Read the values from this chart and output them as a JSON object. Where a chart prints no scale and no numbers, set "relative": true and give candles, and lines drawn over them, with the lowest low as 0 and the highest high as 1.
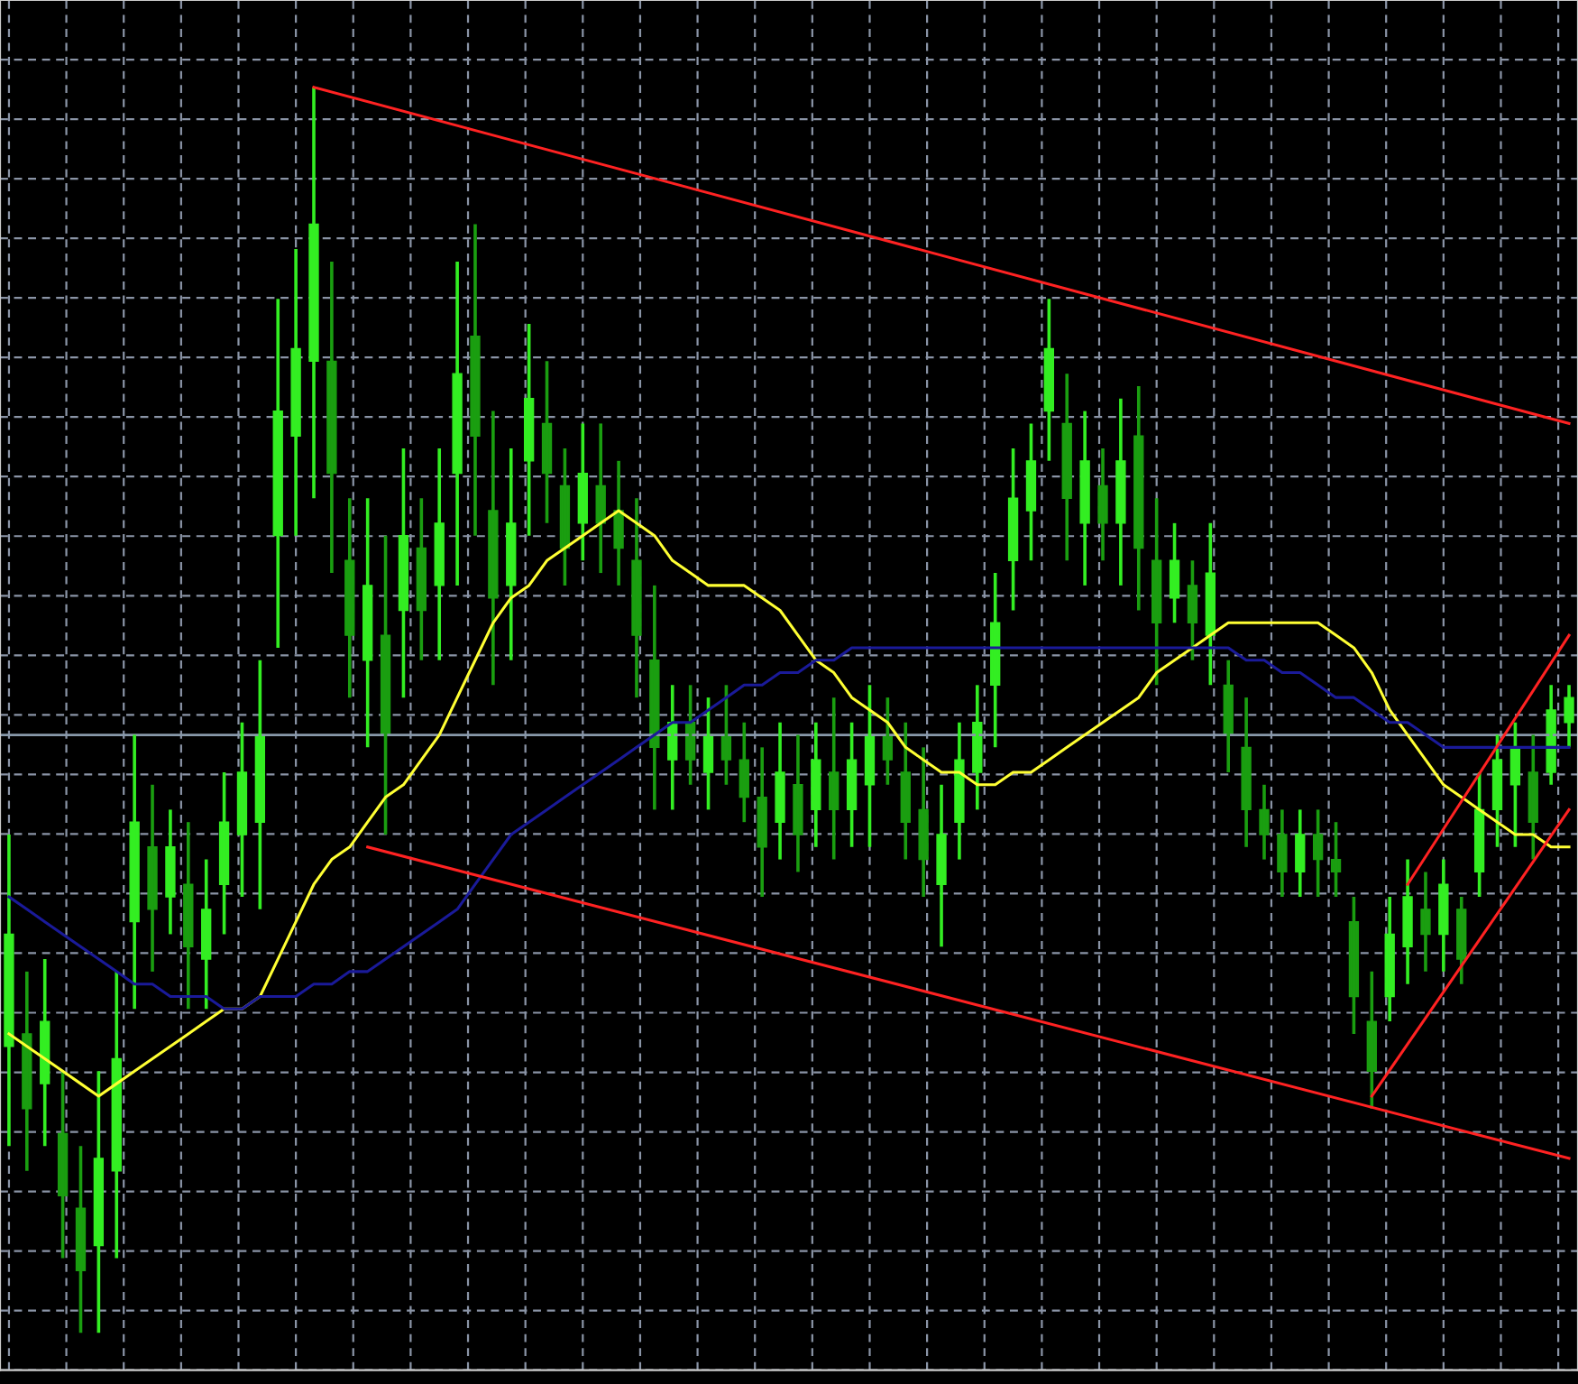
{
  "chart_data": {
    "type": "candlestick",
    "relative": true,
    "grid": true,
    "categories": [
      null,
      null,
      null,
      null,
      null,
      null,
      null,
      null,
      null,
      null,
      null,
      null,
      null,
      null,
      null,
      null,
      null,
      null,
      null,
      null,
      null,
      null,
      null,
      null,
      null,
      null,
      null,
      null,
      null,
      null,
      null,
      null,
      null,
      null,
      null,
      null,
      null,
      null,
      null,
      null,
      null,
      null,
      null,
      null,
      null,
      null,
      null,
      null,
      null,
      null,
      null,
      null,
      null,
      null,
      null,
      null,
      null,
      null,
      null,
      null,
      null,
      null,
      null,
      null,
      null,
      null,
      null,
      null,
      null,
      null,
      null,
      null,
      null,
      null,
      null,
      null,
      null,
      null,
      null,
      null,
      null,
      null,
      null,
      null,
      null,
      null,
      null,
      null
    ],
    "ohlc": [
      [
        0.23,
        0.4,
        0.15,
        0.32
      ],
      [
        0.24,
        0.29,
        0.13,
        0.18
      ],
      [
        0.2,
        0.3,
        0.15,
        0.25
      ],
      [
        0.16,
        0.21,
        0.06,
        0.11
      ],
      [
        0.1,
        0.15,
        0.0,
        0.05
      ],
      [
        0.07,
        0.21,
        0.0,
        0.14
      ],
      [
        0.13,
        0.29,
        0.06,
        0.22
      ],
      [
        0.33,
        0.48,
        0.26,
        0.41
      ],
      [
        0.39,
        0.44,
        0.29,
        0.34
      ],
      [
        0.35,
        0.42,
        0.32,
        0.39
      ],
      [
        0.36,
        0.41,
        0.26,
        0.31
      ],
      [
        0.3,
        0.38,
        0.26,
        0.34
      ],
      [
        0.36,
        0.45,
        0.32,
        0.41
      ],
      [
        0.4,
        0.49,
        0.35,
        0.45
      ],
      [
        0.41,
        0.54,
        0.34,
        0.48
      ],
      [
        0.64,
        0.83,
        0.55,
        0.74
      ],
      [
        0.72,
        0.87,
        0.64,
        0.79
      ],
      [
        0.78,
        1.0,
        0.67,
        0.89
      ],
      [
        0.78,
        0.86,
        0.61,
        0.69
      ],
      [
        0.62,
        0.67,
        0.51,
        0.56
      ],
      [
        0.54,
        0.67,
        0.47,
        0.6
      ],
      [
        0.56,
        0.64,
        0.4,
        0.48
      ],
      [
        0.58,
        0.71,
        0.51,
        0.64
      ],
      [
        0.63,
        0.67,
        0.54,
        0.58
      ],
      [
        0.6,
        0.71,
        0.54,
        0.65
      ],
      [
        0.69,
        0.86,
        0.6,
        0.77
      ],
      [
        0.8,
        0.89,
        0.64,
        0.72
      ],
      [
        0.66,
        0.74,
        0.52,
        0.59
      ],
      [
        0.6,
        0.71,
        0.54,
        0.65
      ],
      [
        0.7,
        0.81,
        0.64,
        0.75
      ],
      [
        0.73,
        0.78,
        0.65,
        0.69
      ],
      [
        0.68,
        0.71,
        0.6,
        0.63
      ],
      [
        0.65,
        0.73,
        0.62,
        0.69
      ],
      [
        0.68,
        0.73,
        0.61,
        0.65
      ],
      [
        0.66,
        0.7,
        0.6,
        0.63
      ],
      [
        0.62,
        0.67,
        0.51,
        0.56
      ],
      [
        0.54,
        0.6,
        0.42,
        0.47
      ],
      [
        0.46,
        0.52,
        0.42,
        0.49
      ],
      [
        0.49,
        0.52,
        0.44,
        0.46
      ],
      [
        0.45,
        0.51,
        0.42,
        0.48
      ],
      [
        0.48,
        0.52,
        0.44,
        0.46
      ],
      [
        0.46,
        0.49,
        0.41,
        0.43
      ],
      [
        0.43,
        0.47,
        0.35,
        0.39
      ],
      [
        0.41,
        0.49,
        0.38,
        0.45
      ],
      [
        0.44,
        0.48,
        0.37,
        0.4
      ],
      [
        0.42,
        0.49,
        0.39,
        0.46
      ],
      [
        0.45,
        0.51,
        0.38,
        0.42
      ],
      [
        0.42,
        0.49,
        0.39,
        0.46
      ],
      [
        0.44,
        0.52,
        0.39,
        0.48
      ],
      [
        0.48,
        0.51,
        0.44,
        0.46
      ],
      [
        0.45,
        0.49,
        0.38,
        0.41
      ],
      [
        0.42,
        0.47,
        0.35,
        0.38
      ],
      [
        0.36,
        0.44,
        0.31,
        0.4
      ],
      [
        0.41,
        0.49,
        0.38,
        0.46
      ],
      [
        0.45,
        0.52,
        0.42,
        0.49
      ],
      [
        0.52,
        0.61,
        0.47,
        0.57
      ],
      [
        0.62,
        0.71,
        0.58,
        0.67
      ],
      [
        0.66,
        0.73,
        0.62,
        0.7
      ],
      [
        0.74,
        0.83,
        0.7,
        0.79
      ],
      [
        0.73,
        0.77,
        0.62,
        0.67
      ],
      [
        0.65,
        0.74,
        0.6,
        0.7
      ],
      [
        0.68,
        0.71,
        0.62,
        0.65
      ],
      [
        0.65,
        0.75,
        0.6,
        0.7
      ],
      [
        0.72,
        0.76,
        0.58,
        0.63
      ],
      [
        0.62,
        0.67,
        0.52,
        0.57
      ],
      [
        0.59,
        0.65,
        0.57,
        0.62
      ],
      [
        0.6,
        0.62,
        0.54,
        0.57
      ],
      [
        0.56,
        0.65,
        0.52,
        0.61
      ],
      [
        0.52,
        0.54,
        0.45,
        0.48
      ],
      [
        0.47,
        0.51,
        0.39,
        0.42
      ],
      [
        0.42,
        0.44,
        0.38,
        0.4
      ],
      [
        0.4,
        0.42,
        0.35,
        0.37
      ],
      [
        0.37,
        0.42,
        0.35,
        0.4
      ],
      [
        0.4,
        0.42,
        0.35,
        0.38
      ],
      [
        0.38,
        0.41,
        0.35,
        0.37
      ],
      [
        0.33,
        0.35,
        0.24,
        0.27
      ],
      [
        0.25,
        0.29,
        0.18,
        0.21
      ],
      [
        0.27,
        0.35,
        0.25,
        0.32
      ],
      [
        0.31,
        0.38,
        0.28,
        0.35
      ],
      [
        0.34,
        0.37,
        0.29,
        0.32
      ],
      [
        0.32,
        0.38,
        0.29,
        0.36
      ],
      [
        0.34,
        0.35,
        0.28,
        0.3
      ],
      [
        0.37,
        0.45,
        0.35,
        0.42
      ],
      [
        0.42,
        0.48,
        0.39,
        0.46
      ],
      [
        0.44,
        0.49,
        0.39,
        0.47
      ],
      [
        0.45,
        0.48,
        0.38,
        0.41
      ],
      [
        0.45,
        0.52,
        0.44,
        0.5
      ],
      [
        0.49,
        0.52,
        0.47,
        0.51
      ]
    ],
    "colors": [
      "#33ee22",
      "#1a9e10",
      "#33ee22",
      "#1a9e10",
      "#1a9e10",
      "#33ee22",
      "#33ee22",
      "#33ee22",
      "#1a9e10",
      "#33ee22",
      "#1a9e10",
      "#33ee22",
      "#33ee22",
      "#33ee22",
      "#33ee22",
      "#33ee22",
      "#33ee22",
      "#33ee22",
      "#1a9e10",
      "#1a9e10",
      "#33ee22",
      "#1a9e10",
      "#33ee22",
      "#1a9e10",
      "#33ee22",
      "#33ee22",
      "#1a9e10",
      "#1a9e10",
      "#33ee22",
      "#33ee22",
      "#1a9e10",
      "#1a9e10",
      "#33ee22",
      "#1a9e10",
      "#1a9e10",
      "#1a9e10",
      "#1a9e10",
      "#33ee22",
      "#1a9e10",
      "#33ee22",
      "#1a9e10",
      "#1a9e10",
      "#1a9e10",
      "#33ee22",
      "#1a9e10",
      "#33ee22",
      "#1a9e10",
      "#33ee22",
      "#33ee22",
      "#1a9e10",
      "#1a9e10",
      "#1a9e10",
      "#33ee22",
      "#33ee22",
      "#33ee22",
      "#33ee22",
      "#33ee22",
      "#33ee22",
      "#33ee22",
      "#1a9e10",
      "#33ee22",
      "#1a9e10",
      "#33ee22",
      "#1a9e10",
      "#1a9e10",
      "#33ee22",
      "#1a9e10",
      "#33ee22",
      "#1a9e10",
      "#1a9e10",
      "#1a9e10",
      "#1a9e10",
      "#33ee22",
      "#1a9e10",
      "#1a9e10",
      "#1a9e10",
      "#1a9e10",
      "#33ee22",
      "#33ee22",
      "#1a9e10",
      "#33ee22",
      "#1a9e10",
      "#33ee22",
      "#33ee22",
      "#33ee22",
      "#1a9e10",
      "#33ee22",
      "#33ee22"
    ],
    "series": [
      {
        "type": "line",
        "color": "#ffff33",
        "values": [
          0.24,
          0.23,
          0.22,
          0.21,
          0.2,
          0.19,
          0.2,
          0.21,
          0.22,
          0.23,
          0.24,
          0.25,
          0.26,
          0.26,
          0.27,
          0.3,
          0.33,
          0.36,
          0.38,
          0.39,
          0.41,
          0.43,
          0.44,
          0.46,
          0.48,
          0.51,
          0.54,
          0.57,
          0.59,
          0.6,
          0.62,
          0.63,
          0.64,
          0.65,
          0.66,
          0.65,
          0.64,
          0.62,
          0.61,
          0.6,
          0.6,
          0.6,
          0.59,
          0.58,
          0.56,
          0.54,
          0.53,
          0.51,
          0.5,
          0.49,
          0.47,
          0.46,
          0.45,
          0.45,
          0.44,
          0.44,
          0.45,
          0.45,
          0.46,
          0.47,
          0.48,
          0.49,
          0.5,
          0.51,
          0.53,
          0.54,
          0.55,
          0.56,
          0.57,
          0.57,
          0.57,
          0.57,
          0.57,
          0.57,
          0.56,
          0.55,
          0.53,
          0.5,
          0.48,
          0.46,
          0.44,
          0.43,
          0.42,
          0.41,
          0.4,
          0.4,
          0.39,
          0.39
        ]
      },
      {
        "type": "line",
        "color": "#1a1a99",
        "values": [
          0.35,
          0.34,
          0.33,
          0.32,
          0.31,
          0.3,
          0.29,
          0.28,
          0.28,
          0.27,
          0.27,
          0.27,
          0.26,
          0.26,
          0.27,
          0.27,
          0.27,
          0.28,
          0.28,
          0.29,
          0.29,
          0.3,
          0.31,
          0.32,
          0.33,
          0.34,
          0.36,
          0.38,
          0.4,
          0.41,
          0.42,
          0.43,
          0.44,
          0.45,
          0.46,
          0.47,
          0.48,
          0.49,
          0.49,
          0.5,
          0.51,
          0.52,
          0.52,
          0.53,
          0.53,
          0.54,
          0.54,
          0.55,
          0.55,
          0.55,
          0.55,
          0.55,
          0.55,
          0.55,
          0.55,
          0.55,
          0.55,
          0.55,
          0.55,
          0.55,
          0.55,
          0.55,
          0.55,
          0.55,
          0.55,
          0.55,
          0.55,
          0.55,
          0.55,
          0.54,
          0.54,
          0.53,
          0.53,
          0.52,
          0.51,
          0.51,
          0.5,
          0.49,
          0.49,
          0.48,
          0.47,
          0.47,
          0.47,
          0.47,
          0.47,
          0.47,
          0.47,
          0.47
        ]
      },
      {
        "type": "line",
        "color": "#ff2222",
        "values": [
          null,
          null,
          null,
          null,
          null,
          null,
          null,
          null,
          null,
          null,
          null,
          null,
          null,
          null,
          null,
          null,
          null,
          1.0,
          null,
          null,
          null,
          null,
          null,
          null,
          null,
          null,
          null,
          null,
          null,
          null,
          null,
          null,
          null,
          null,
          null,
          null,
          null,
          null,
          null,
          null,
          null,
          null,
          null,
          null,
          null,
          null,
          null,
          null,
          null,
          null,
          null,
          null,
          null,
          null,
          null,
          null,
          null,
          null,
          null,
          null,
          null,
          null,
          null,
          null,
          null,
          null,
          null,
          null,
          null,
          null,
          null,
          null,
          null,
          null,
          null,
          null,
          null,
          null,
          null,
          null,
          null,
          null,
          null,
          null,
          null,
          null,
          null,
          0.73
        ]
      },
      {
        "type": "line",
        "color": "#ff2222",
        "values": [
          null,
          null,
          null,
          null,
          null,
          null,
          null,
          null,
          null,
          null,
          null,
          null,
          null,
          null,
          null,
          null,
          null,
          null,
          null,
          null,
          0.39,
          null,
          null,
          null,
          null,
          null,
          null,
          null,
          null,
          null,
          null,
          null,
          null,
          null,
          null,
          null,
          null,
          null,
          null,
          null,
          null,
          null,
          null,
          null,
          null,
          null,
          null,
          null,
          null,
          null,
          null,
          null,
          null,
          null,
          null,
          null,
          null,
          null,
          null,
          null,
          null,
          null,
          null,
          null,
          null,
          null,
          null,
          null,
          null,
          null,
          null,
          null,
          null,
          null,
          null,
          null,
          null,
          null,
          null,
          null,
          null,
          null,
          null,
          null,
          null,
          null,
          null,
          0.14
        ]
      },
      {
        "type": "line",
        "color": "#ff2222",
        "values": [
          null,
          null,
          null,
          null,
          null,
          null,
          null,
          null,
          null,
          null,
          null,
          null,
          null,
          null,
          null,
          null,
          null,
          null,
          null,
          null,
          null,
          null,
          null,
          null,
          null,
          null,
          null,
          null,
          null,
          null,
          null,
          null,
          null,
          null,
          null,
          null,
          null,
          null,
          null,
          null,
          null,
          null,
          null,
          null,
          null,
          null,
          null,
          null,
          null,
          null,
          null,
          null,
          null,
          null,
          null,
          null,
          null,
          null,
          null,
          null,
          null,
          null,
          null,
          null,
          null,
          null,
          null,
          null,
          null,
          null,
          null,
          null,
          null,
          null,
          null,
          null,
          0.19,
          null,
          null,
          null,
          null,
          null,
          null,
          null,
          null,
          null,
          null,
          0.42
        ]
      },
      {
        "type": "line",
        "color": "#ff2222",
        "values": [
          null,
          null,
          null,
          null,
          null,
          null,
          null,
          null,
          null,
          null,
          null,
          null,
          null,
          null,
          null,
          null,
          null,
          null,
          null,
          null,
          null,
          null,
          null,
          null,
          null,
          null,
          null,
          null,
          null,
          null,
          null,
          null,
          null,
          null,
          null,
          null,
          null,
          null,
          null,
          null,
          null,
          null,
          null,
          null,
          null,
          null,
          null,
          null,
          null,
          null,
          null,
          null,
          null,
          null,
          null,
          null,
          null,
          null,
          null,
          null,
          null,
          null,
          null,
          null,
          null,
          null,
          null,
          null,
          null,
          null,
          null,
          null,
          null,
          null,
          null,
          null,
          null,
          null,
          0.36,
          null,
          null,
          null,
          null,
          null,
          null,
          null,
          null,
          0.56
        ]
      }
    ],
    "ref_lines": [
      {
        "axis": "y",
        "value": 0.48,
        "color": "#8899aa"
      }
    ]
  }
}
